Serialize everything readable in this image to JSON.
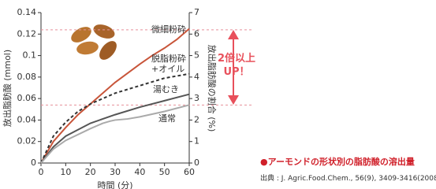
{
  "chart_data": {
    "type": "line",
    "ylabel": "放出脂肪酸 (mmol)",
    "y2label": "放出脂肪酸の割合 (%)",
    "xlabel": "時間 (分)",
    "annotation": "2倍以上\nUP！",
    "xlim": [
      0,
      60
    ],
    "xticks": [
      0,
      10,
      20,
      30,
      40,
      50,
      60
    ],
    "ylim": [
      0,
      0.14
    ],
    "yticks": [
      0,
      0.02,
      0.04,
      0.06,
      0.08,
      0.1,
      0.12,
      0.14
    ],
    "y2lim": [
      0,
      7
    ],
    "y2ticks": [
      0,
      1,
      2,
      3,
      4,
      5,
      6,
      7
    ],
    "reference_y2": [
      6.2,
      2.7
    ],
    "series": [
      {
        "name": "微細粉砕",
        "color": "#c8553a",
        "dash": false,
        "x": [
          0,
          5,
          10,
          15,
          20,
          30,
          40,
          45,
          50,
          55,
          60
        ],
        "values": [
          0,
          0.02,
          0.033,
          0.045,
          0.055,
          0.075,
          0.092,
          0.1,
          0.107,
          0.115,
          0.125
        ]
      },
      {
        "name": "脱脂粉砕\n+オイル",
        "color": "#333333",
        "dash": true,
        "x": [
          0,
          5,
          10,
          15,
          20,
          30,
          40,
          50,
          60
        ],
        "values": [
          0,
          0.025,
          0.038,
          0.048,
          0.055,
          0.065,
          0.072,
          0.079,
          0.083
        ]
      },
      {
        "name": "湯むき",
        "color": "#555555",
        "dash": false,
        "x": [
          0,
          5,
          10,
          20,
          30,
          40,
          50,
          60
        ],
        "values": [
          0,
          0.015,
          0.025,
          0.037,
          0.045,
          0.052,
          0.058,
          0.064
        ]
      },
      {
        "name": "通常",
        "color": "#aaaaaa",
        "dash": false,
        "x": [
          0,
          5,
          10,
          20,
          25,
          28,
          30,
          35,
          40,
          50,
          60
        ],
        "values": [
          0,
          0.013,
          0.021,
          0.032,
          0.037,
          0.039,
          0.04,
          0.041,
          0.043,
          0.048,
          0.054
        ]
      }
    ]
  },
  "caption": "●アーモンドの形状別の脂肪酸の溶出量",
  "source": "出典 : J. Agric.Food.Chem., 56(9), 3409-3416(2008)"
}
